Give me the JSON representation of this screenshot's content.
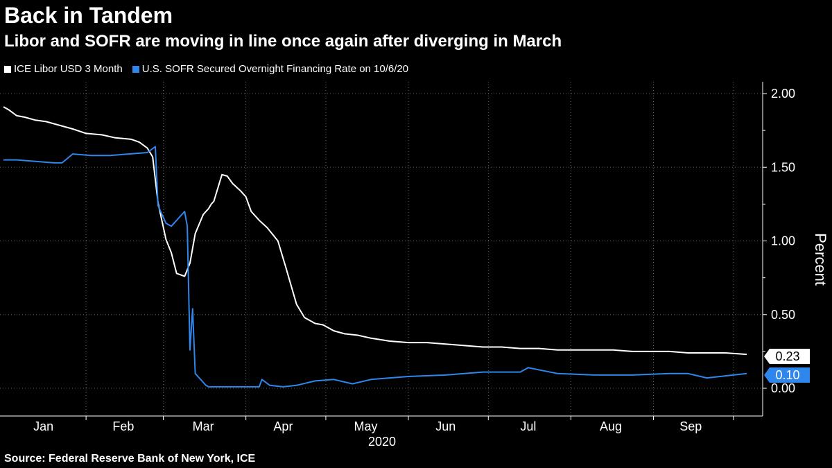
{
  "title": "Back in Tandem",
  "subtitle": "Libor and SOFR are moving in line once again after diverging in March",
  "source": "Source: Federal Reserve Bank of New York, ICE",
  "colors": {
    "background": "#000000",
    "libor": "#ffffff",
    "sofr": "#2f86ec",
    "grid": "#666666"
  },
  "chart_data": {
    "type": "line",
    "title": "Back in Tandem",
    "subtitle": "Libor and SOFR are moving in line once again after diverging in March",
    "xlabel": "2020",
    "ylabel": "Percent",
    "ylim": [
      -0.18,
      2.1
    ],
    "yticks": [
      "2.00",
      "1.50",
      "1.00",
      "0.50",
      "0.00"
    ],
    "ytick_values": [
      2.0,
      1.5,
      1.0,
      0.5,
      0.0
    ],
    "xticks": [
      "Jan",
      "Feb",
      "Mar",
      "Apr",
      "May",
      "Jun",
      "Jul",
      "Aug",
      "Sep"
    ],
    "xlim": [
      "2020-01-01",
      "2020-10-06"
    ],
    "grid": true,
    "legend_position": "top-left",
    "series": [
      {
        "name": "ICE Libor USD 3 Month",
        "color": "#ffffff",
        "end_label": "0.23",
        "x": [
          "2020-01-01",
          "2020-01-03",
          "2020-01-06",
          "2020-01-09",
          "2020-01-13",
          "2020-01-17",
          "2020-01-21",
          "2020-01-27",
          "2020-02-01",
          "2020-02-07",
          "2020-02-12",
          "2020-02-18",
          "2020-02-21",
          "2020-02-24",
          "2020-02-26",
          "2020-02-28",
          "2020-03-02",
          "2020-03-04",
          "2020-03-06",
          "2020-03-09",
          "2020-03-11",
          "2020-03-13",
          "2020-03-16",
          "2020-03-17",
          "2020-03-18",
          "2020-03-19",
          "2020-03-20",
          "2020-03-23",
          "2020-03-25",
          "2020-03-27",
          "2020-03-30",
          "2020-04-01",
          "2020-04-03",
          "2020-04-06",
          "2020-04-09",
          "2020-04-13",
          "2020-04-16",
          "2020-04-20",
          "2020-04-23",
          "2020-04-27",
          "2020-04-30",
          "2020-05-04",
          "2020-05-08",
          "2020-05-13",
          "2020-05-18",
          "2020-05-25",
          "2020-06-01",
          "2020-06-08",
          "2020-06-15",
          "2020-06-22",
          "2020-06-29",
          "2020-07-06",
          "2020-07-13",
          "2020-07-20",
          "2020-07-27",
          "2020-08-03",
          "2020-08-10",
          "2020-08-17",
          "2020-08-24",
          "2020-08-31",
          "2020-09-07",
          "2020-09-14",
          "2020-09-21",
          "2020-09-28",
          "2020-10-06"
        ],
        "values": [
          1.91,
          1.89,
          1.85,
          1.84,
          1.82,
          1.81,
          1.79,
          1.76,
          1.73,
          1.72,
          1.7,
          1.69,
          1.67,
          1.63,
          1.57,
          1.26,
          1.01,
          0.92,
          0.78,
          0.76,
          0.85,
          1.05,
          1.18,
          1.2,
          1.22,
          1.25,
          1.27,
          1.45,
          1.44,
          1.39,
          1.34,
          1.3,
          1.2,
          1.14,
          1.09,
          1.0,
          0.82,
          0.57,
          0.48,
          0.44,
          0.43,
          0.39,
          0.37,
          0.36,
          0.34,
          0.32,
          0.31,
          0.31,
          0.3,
          0.29,
          0.28,
          0.28,
          0.27,
          0.27,
          0.26,
          0.26,
          0.26,
          0.26,
          0.25,
          0.25,
          0.25,
          0.24,
          0.24,
          0.24,
          0.23
        ]
      },
      {
        "name": "U.S. SOFR Secured Overnight Financing Rate on 10/6/20",
        "color": "#2f86ec",
        "end_label": "0.10",
        "x": [
          "2020-01-01",
          "2020-01-06",
          "2020-01-13",
          "2020-01-20",
          "2020-01-23",
          "2020-01-27",
          "2020-02-03",
          "2020-02-10",
          "2020-02-17",
          "2020-02-24",
          "2020-02-27",
          "2020-02-28",
          "2020-03-02",
          "2020-03-04",
          "2020-03-06",
          "2020-03-09",
          "2020-03-10",
          "2020-03-11",
          "2020-03-12",
          "2020-03-13",
          "2020-03-16",
          "2020-03-17",
          "2020-03-18",
          "2020-03-20",
          "2020-03-24",
          "2020-03-31",
          "2020-04-06",
          "2020-04-07",
          "2020-04-10",
          "2020-04-15",
          "2020-04-20",
          "2020-04-27",
          "2020-05-04",
          "2020-05-11",
          "2020-05-18",
          "2020-05-25",
          "2020-06-01",
          "2020-06-15",
          "2020-06-29",
          "2020-07-13",
          "2020-07-16",
          "2020-07-27",
          "2020-08-10",
          "2020-08-24",
          "2020-09-07",
          "2020-09-14",
          "2020-09-21",
          "2020-10-06"
        ],
        "values": [
          1.55,
          1.55,
          1.54,
          1.53,
          1.53,
          1.59,
          1.58,
          1.58,
          1.59,
          1.6,
          1.64,
          1.24,
          1.12,
          1.1,
          1.14,
          1.2,
          1.1,
          0.26,
          0.54,
          0.1,
          0.04,
          0.02,
          0.01,
          0.01,
          0.01,
          0.01,
          0.01,
          0.06,
          0.02,
          0.01,
          0.02,
          0.05,
          0.06,
          0.03,
          0.06,
          0.07,
          0.08,
          0.09,
          0.11,
          0.11,
          0.14,
          0.1,
          0.09,
          0.09,
          0.1,
          0.1,
          0.07,
          0.1
        ]
      }
    ]
  }
}
